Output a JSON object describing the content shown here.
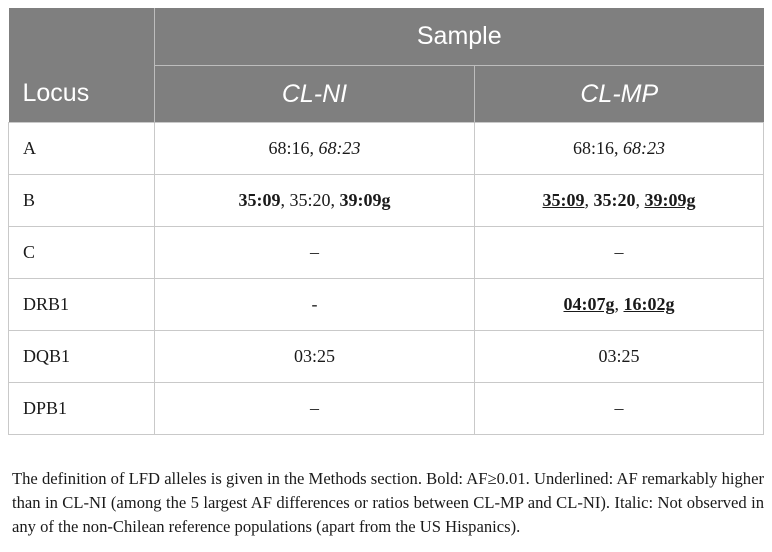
{
  "header": {
    "sample_label": "Sample",
    "locus_label": "Locus",
    "columns": [
      "CL-NI",
      "CL-MP"
    ]
  },
  "rows": [
    {
      "locus": "A",
      "cl_ni": [
        {
          "t": "68:16"
        },
        {
          "t": ", "
        },
        {
          "t": "68:23",
          "i": true
        }
      ],
      "cl_mp": [
        {
          "t": "68:16"
        },
        {
          "t": ", "
        },
        {
          "t": "68:23",
          "i": true
        }
      ]
    },
    {
      "locus": "B",
      "cl_ni": [
        {
          "t": "35:09",
          "b": true
        },
        {
          "t": ", 35:20, "
        },
        {
          "t": "39:09g",
          "b": true
        }
      ],
      "cl_mp": [
        {
          "t": "35:09",
          "b": true,
          "u": true
        },
        {
          "t": ", "
        },
        {
          "t": "35:20",
          "b": true
        },
        {
          "t": ", "
        },
        {
          "t": "39:09g",
          "b": true,
          "u": true
        }
      ]
    },
    {
      "locus": "C",
      "cl_ni": [
        {
          "t": "–"
        }
      ],
      "cl_mp": [
        {
          "t": "–"
        }
      ]
    },
    {
      "locus": "DRB1",
      "cl_ni": [
        {
          "t": "-"
        }
      ],
      "cl_mp": [
        {
          "t": "04:07g",
          "b": true,
          "u": true
        },
        {
          "t": ", "
        },
        {
          "t": "16:02g",
          "b": true,
          "u": true
        }
      ]
    },
    {
      "locus": "DQB1",
      "cl_ni": [
        {
          "t": "03:25"
        }
      ],
      "cl_mp": [
        {
          "t": "03:25"
        }
      ]
    },
    {
      "locus": "DPB1",
      "cl_ni": [
        {
          "t": "–"
        }
      ],
      "cl_mp": [
        {
          "t": "–"
        }
      ]
    }
  ],
  "footnote": "The definition of LFD alleles is given in the Methods section. Bold: AF≥0.01. Underlined: AF remarkably higher than in CL-NI (among the 5 largest AF differences or ratios between CL-MP and CL-NI). Italic: Not observed in any of the non-Chilean reference populations (apart from the US Hispanics)."
}
